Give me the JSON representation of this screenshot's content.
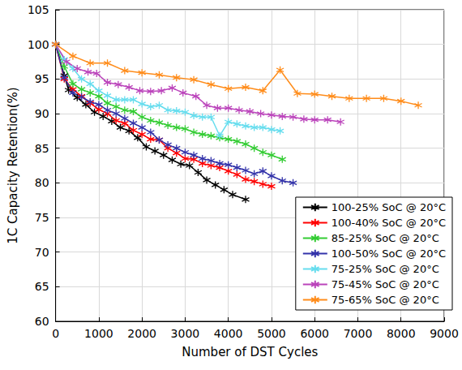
{
  "chart_data": {
    "type": "line",
    "x_label": "Number of DST Cycles",
    "y_label": "1C Capacity Retention(%)",
    "xlim": [
      0,
      9000
    ],
    "xticks": [
      0,
      1000,
      2000,
      3000,
      4000,
      5000,
      6000,
      7000,
      8000,
      9000
    ],
    "ylim": [
      60,
      105
    ],
    "yticks": [
      60,
      65,
      70,
      75,
      80,
      85,
      90,
      95,
      100,
      105
    ],
    "grid": true,
    "legend": "lower right",
    "marker": "asterisk",
    "series": [
      {
        "name": "100-25% SoC @ 20°C",
        "color": "#000000",
        "x": [
          0,
          200,
          300,
          500,
          700,
          900,
          1100,
          1300,
          1500,
          1700,
          1900,
          2100,
          2300,
          2500,
          2700,
          2900,
          3100,
          3300,
          3500,
          3700,
          3900,
          4100,
          4400
        ],
        "values": [
          100,
          95.5,
          93.4,
          92.3,
          91.3,
          90.2,
          89.6,
          88.9,
          88,
          87.5,
          86.5,
          85.2,
          84.6,
          84,
          83.3,
          82.7,
          82.5,
          81.5,
          80.4,
          79.7,
          79,
          78.3,
          77.6
        ]
      },
      {
        "name": "100-40% SoC @ 20°C",
        "color": "#ff0000",
        "x": [
          0,
          200,
          400,
          600,
          800,
          1000,
          1200,
          1400,
          1600,
          1800,
          2000,
          2200,
          2400,
          2600,
          2800,
          3000,
          3200,
          3400,
          3600,
          3800,
          4000,
          4200,
          4400,
          4600,
          4800,
          5000
        ],
        "values": [
          100,
          95,
          93.5,
          92.5,
          91.5,
          90.6,
          90,
          89,
          88.6,
          87.6,
          87,
          86.3,
          86.2,
          85,
          84.3,
          83.5,
          83.4,
          82.8,
          82.5,
          82.2,
          81.7,
          81.2,
          80.5,
          80.2,
          79.8,
          79.5
        ]
      },
      {
        "name": "85-25% SoC @ 20°C",
        "color": "#33cc33",
        "x": [
          0,
          200,
          400,
          600,
          800,
          1000,
          1200,
          1400,
          1600,
          1800,
          2000,
          2200,
          2400,
          2600,
          2800,
          3000,
          3200,
          3400,
          3600,
          3800,
          4000,
          4200,
          4400,
          4600,
          4800,
          5000,
          5250
        ],
        "values": [
          100,
          96.8,
          94.3,
          93.5,
          93,
          92.5,
          91.5,
          91,
          90.5,
          90.3,
          89.5,
          89,
          88.7,
          88.3,
          88,
          87.8,
          87.3,
          87,
          86.8,
          86.5,
          86.3,
          86,
          85.6,
          85,
          84.4,
          84,
          83.4
        ]
      },
      {
        "name": "100-50% SoC @ 20°C",
        "color": "#3333aa",
        "x": [
          0,
          200,
          400,
          600,
          800,
          1000,
          1200,
          1400,
          1600,
          1800,
          2000,
          2200,
          2400,
          2600,
          2800,
          3000,
          3200,
          3400,
          3600,
          3800,
          4000,
          4200,
          4400,
          4600,
          4800,
          5000,
          5250,
          5500
        ],
        "values": [
          100,
          95.2,
          93,
          92.4,
          91.7,
          91.3,
          90.5,
          90,
          89.3,
          88.6,
          88,
          87.3,
          86.2,
          85.5,
          85,
          84.4,
          84,
          83.5,
          83.2,
          82.8,
          82.6,
          82.2,
          81.8,
          81.3,
          81.7,
          81,
          80.3,
          80
        ]
      },
      {
        "name": "75-25% SoC @ 20°C",
        "color": "#66ddee",
        "x": [
          0,
          200,
          400,
          600,
          800,
          1000,
          1200,
          1400,
          1600,
          1800,
          2000,
          2200,
          2400,
          2600,
          2800,
          3000,
          3200,
          3400,
          3600,
          3800,
          4000,
          4200,
          4400,
          4600,
          4800,
          5000,
          5200
        ],
        "values": [
          100,
          97.8,
          96.5,
          95,
          94.3,
          93.3,
          92.6,
          92,
          92,
          92,
          91.4,
          91,
          91.2,
          90.5,
          90.4,
          90.2,
          89.7,
          89.5,
          89.5,
          86.8,
          88.8,
          88.5,
          88.2,
          88,
          88,
          87.7,
          87.5
        ]
      },
      {
        "name": "75-45% SoC @ 20°C",
        "color": "#bb44bb",
        "x": [
          0,
          250,
          500,
          750,
          950,
          1200,
          1450,
          1700,
          1950,
          2200,
          2450,
          2700,
          2950,
          3250,
          3500,
          3750,
          4000,
          4250,
          4500,
          4750,
          5000,
          5250,
          5500,
          5750,
          6000,
          6300,
          6600
        ],
        "values": [
          100,
          97.5,
          96.5,
          96,
          95.8,
          94.5,
          94.2,
          93.8,
          93.3,
          93.2,
          93.3,
          93.7,
          93,
          92.5,
          91.2,
          90.8,
          90.8,
          90.5,
          90.3,
          90,
          89.8,
          89.6,
          89.5,
          89.2,
          89.1,
          89.1,
          88.8
        ]
      },
      {
        "name": "75-65% SoC @ 20°C",
        "color": "#ff8c1a",
        "x": [
          0,
          400,
          800,
          1200,
          1600,
          2000,
          2400,
          2800,
          3200,
          3600,
          4000,
          4400,
          4800,
          5200,
          5600,
          6000,
          6400,
          6800,
          7200,
          7600,
          8000,
          8400
        ],
        "values": [
          100,
          98.3,
          97.3,
          97.3,
          96.2,
          95.9,
          95.6,
          95.2,
          94.9,
          94.2,
          93.6,
          93.8,
          93.3,
          96.3,
          92.9,
          92.8,
          92.5,
          92.2,
          92.2,
          92.2,
          91.8,
          91.2
        ]
      }
    ]
  }
}
